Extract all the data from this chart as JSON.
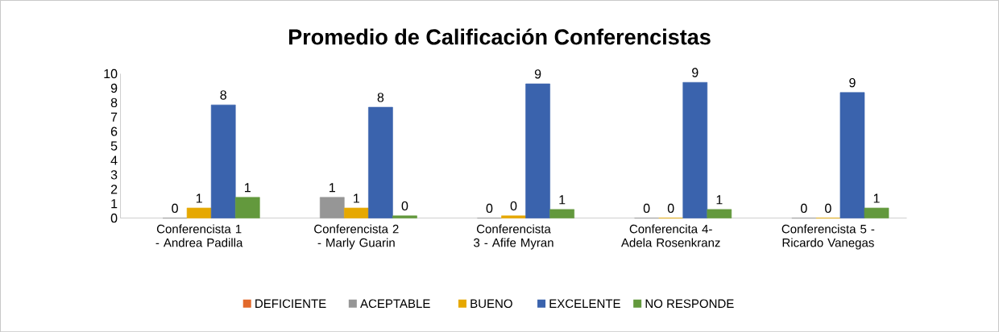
{
  "chart_data": {
    "type": "bar",
    "title": "Promedio  de Calificación Conferencistas",
    "categories": [
      "Conferencista 1 - Andrea Padilla",
      "Conferencista 2 - Marly Guarin",
      "Conferencista 3 - Afife Myran",
      "Conferencita 4- Adela Rosenkranz",
      "Conferencista 5 - Ricardo Vanegas"
    ],
    "series": [
      {
        "name": "DEFICIENTE",
        "color": "#e2692b",
        "values": [
          null,
          null,
          null,
          null,
          null
        ],
        "value_labels": [
          null,
          null,
          null,
          null,
          null
        ]
      },
      {
        "name": "ACEPTABLE",
        "color": "#969696",
        "values": [
          0,
          1.44,
          0,
          0,
          0
        ],
        "value_labels": [
          "0",
          "1",
          "0",
          "0",
          "0"
        ]
      },
      {
        "name": "BUENO",
        "color": "#e6a800",
        "values": [
          0.7,
          0.7,
          0.16,
          0,
          0
        ],
        "value_labels": [
          "1",
          "1",
          "0",
          "0",
          "0"
        ]
      },
      {
        "name": "EXCELENTE",
        "color": "#3a63ad",
        "values": [
          7.84,
          7.68,
          9.3,
          9.4,
          8.7
        ],
        "value_labels": [
          "8",
          "8",
          "9",
          "9",
          "9"
        ]
      },
      {
        "name": "NO RESPONDE",
        "color": "#63993d",
        "values": [
          1.44,
          0.16,
          0.6,
          0.6,
          0.7
        ],
        "value_labels": [
          "1",
          "0",
          "1",
          "1",
          "1"
        ]
      }
    ],
    "ylim": [
      0,
      10
    ],
    "yticks": [
      0,
      1,
      2,
      3,
      4,
      5,
      6,
      7,
      8,
      9,
      10
    ],
    "grid": false,
    "legend": "bottom"
  }
}
